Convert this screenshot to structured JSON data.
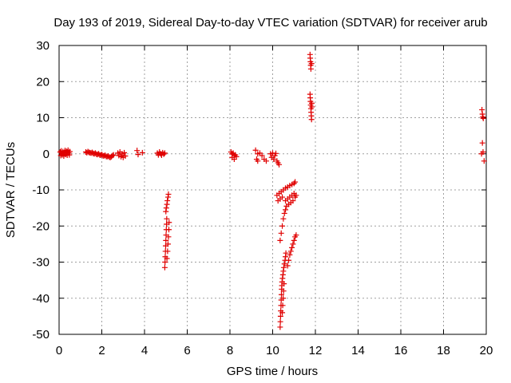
{
  "chart_data": {
    "type": "scatter",
    "title": "Day 193 of 2019, Sidereal Day-to-day VTEC variation (SDTVAR) for receiver arub",
    "xlabel": "GPS time / hours",
    "ylabel": "SDTVAR / TECUs",
    "xlim": [
      0,
      20
    ],
    "ylim": [
      -50,
      30
    ],
    "xticks": [
      0,
      2,
      4,
      6,
      8,
      10,
      12,
      14,
      16,
      18,
      20
    ],
    "yticks": [
      -50,
      -40,
      -30,
      -20,
      -10,
      0,
      10,
      20,
      30
    ],
    "grid": true,
    "marker": "+",
    "marker_color": "#e00000",
    "series": [
      {
        "name": "SDTVAR",
        "points": [
          [
            0.05,
            0.5
          ],
          [
            0.08,
            -0.5
          ],
          [
            0.1,
            0.8
          ],
          [
            0.12,
            0.2
          ],
          [
            0.15,
            -0.3
          ],
          [
            0.18,
            0.6
          ],
          [
            0.2,
            0.1
          ],
          [
            0.22,
            -0.6
          ],
          [
            0.25,
            0.4
          ],
          [
            0.28,
            0.9
          ],
          [
            0.3,
            -0.2
          ],
          [
            0.32,
            0.3
          ],
          [
            0.35,
            0.7
          ],
          [
            0.38,
            -0.4
          ],
          [
            0.4,
            0.5
          ],
          [
            0.42,
            1.0
          ],
          [
            0.45,
            0.2
          ],
          [
            0.48,
            -0.3
          ],
          [
            0.5,
            0.6
          ],
          [
            1.25,
            0.5
          ],
          [
            1.3,
            0.3
          ],
          [
            1.35,
            0.6
          ],
          [
            1.4,
            0.4
          ],
          [
            1.45,
            0.3
          ],
          [
            1.5,
            0.2
          ],
          [
            1.55,
            0.4
          ],
          [
            1.6,
            0.1
          ],
          [
            1.65,
            0.0
          ],
          [
            1.7,
            0.2
          ],
          [
            1.75,
            -0.1
          ],
          [
            1.8,
            -0.2
          ],
          [
            1.85,
            0.0
          ],
          [
            1.9,
            -0.3
          ],
          [
            1.95,
            -0.4
          ],
          [
            2.0,
            -0.2
          ],
          [
            2.05,
            -0.5
          ],
          [
            2.1,
            -0.6
          ],
          [
            2.15,
            -0.4
          ],
          [
            2.2,
            -0.7
          ],
          [
            2.25,
            -0.8
          ],
          [
            2.3,
            -0.6
          ],
          [
            2.35,
            -0.9
          ],
          [
            2.4,
            -1.0
          ],
          [
            2.45,
            -0.8
          ],
          [
            2.5,
            -0.5
          ],
          [
            2.55,
            -0.3
          ],
          [
            2.75,
            0.2
          ],
          [
            2.8,
            -0.5
          ],
          [
            2.85,
            0.5
          ],
          [
            2.9,
            -0.8
          ],
          [
            2.95,
            0.0
          ],
          [
            3.0,
            -1.0
          ],
          [
            3.05,
            0.3
          ],
          [
            3.1,
            -0.6
          ],
          [
            3.65,
            0.9
          ],
          [
            3.7,
            -0.2
          ],
          [
            3.9,
            0.3
          ],
          [
            4.6,
            0.2
          ],
          [
            4.65,
            -0.3
          ],
          [
            4.7,
            0.5
          ],
          [
            4.75,
            0.0
          ],
          [
            4.8,
            -0.4
          ],
          [
            4.85,
            0.3
          ],
          [
            4.9,
            -0.1
          ],
          [
            4.95,
            0.2
          ],
          [
            4.95,
            -31.5
          ],
          [
            4.96,
            -30
          ],
          [
            4.97,
            -28.5
          ],
          [
            4.98,
            -27
          ],
          [
            4.99,
            -25.5
          ],
          [
            5.0,
            -24
          ],
          [
            5.01,
            -22.5
          ],
          [
            5.02,
            -21
          ],
          [
            5.03,
            -19.5
          ],
          [
            5.04,
            -18
          ],
          [
            5.0,
            -16
          ],
          [
            5.02,
            -15
          ],
          [
            5.05,
            -14
          ],
          [
            5.07,
            -13
          ],
          [
            5.1,
            -12
          ],
          [
            5.12,
            -11.2
          ],
          [
            5.05,
            -29
          ],
          [
            5.08,
            -27
          ],
          [
            5.1,
            -25
          ],
          [
            5.12,
            -23
          ],
          [
            5.14,
            -21
          ],
          [
            5.15,
            -19
          ],
          [
            8.05,
            0.5
          ],
          [
            8.1,
            -1.0
          ],
          [
            8.15,
            0.2
          ],
          [
            8.2,
            -1.5
          ],
          [
            8.25,
            -0.3
          ],
          [
            8.3,
            -0.8
          ],
          [
            8.1,
            0.0
          ],
          [
            8.2,
            -0.5
          ],
          [
            9.2,
            1.0
          ],
          [
            9.25,
            -1.5
          ],
          [
            9.3,
            0.0
          ],
          [
            9.3,
            -2.0
          ],
          [
            9.4,
            0.2
          ],
          [
            9.5,
            -0.5
          ],
          [
            9.6,
            -1.5
          ],
          [
            9.7,
            -2.0
          ],
          [
            9.9,
            0.0
          ],
          [
            9.95,
            -1.0
          ],
          [
            10.0,
            0.2
          ],
          [
            10.05,
            -1.5
          ],
          [
            10.1,
            -0.5
          ],
          [
            10.15,
            0.1
          ],
          [
            10.2,
            -2.0
          ],
          [
            10.25,
            -2.5
          ],
          [
            10.3,
            -3.0
          ],
          [
            10.2,
            -11.5
          ],
          [
            10.3,
            -11
          ],
          [
            10.4,
            -10.5
          ],
          [
            10.5,
            -10
          ],
          [
            10.6,
            -9.5
          ],
          [
            10.7,
            -9.2
          ],
          [
            10.8,
            -8.8
          ],
          [
            10.9,
            -8.5
          ],
          [
            11.0,
            -8.2
          ],
          [
            11.05,
            -7.8
          ],
          [
            10.35,
            -24
          ],
          [
            10.4,
            -22
          ],
          [
            10.45,
            -20
          ],
          [
            10.5,
            -18
          ],
          [
            10.55,
            -16.5
          ],
          [
            10.6,
            -15.5
          ],
          [
            10.65,
            -14.5
          ],
          [
            10.75,
            -14
          ],
          [
            10.85,
            -13.5
          ],
          [
            10.95,
            -13
          ],
          [
            11.05,
            -12
          ],
          [
            11.1,
            -11.5
          ],
          [
            10.6,
            -13
          ],
          [
            10.7,
            -12.5
          ],
          [
            10.8,
            -12
          ],
          [
            10.9,
            -11.5
          ],
          [
            11.0,
            -11
          ],
          [
            10.25,
            -13
          ],
          [
            10.35,
            -12.5
          ],
          [
            10.45,
            -12
          ],
          [
            10.35,
            -48
          ],
          [
            10.36,
            -46.5
          ],
          [
            10.37,
            -45
          ],
          [
            10.38,
            -43.5
          ],
          [
            10.39,
            -42
          ],
          [
            10.4,
            -40.5
          ],
          [
            10.41,
            -39
          ],
          [
            10.42,
            -37.5
          ],
          [
            10.43,
            -36.5
          ],
          [
            10.44,
            -35.5
          ],
          [
            10.46,
            -34.5
          ],
          [
            10.48,
            -33.5
          ],
          [
            10.5,
            -32.5
          ],
          [
            10.52,
            -31.5
          ],
          [
            10.55,
            -30.5
          ],
          [
            10.58,
            -29.5
          ],
          [
            10.6,
            -28.5
          ],
          [
            10.62,
            -27.5
          ],
          [
            10.45,
            -44
          ],
          [
            10.47,
            -42
          ],
          [
            10.49,
            -40
          ],
          [
            10.51,
            -38
          ],
          [
            10.53,
            -36
          ],
          [
            10.7,
            -31
          ],
          [
            10.75,
            -29.5
          ],
          [
            10.8,
            -28
          ],
          [
            10.85,
            -27
          ],
          [
            10.9,
            -26
          ],
          [
            10.95,
            -25
          ],
          [
            11.0,
            -24
          ],
          [
            11.05,
            -23
          ],
          [
            11.1,
            -22.5
          ],
          [
            11.75,
            27.5
          ],
          [
            11.76,
            26.5
          ],
          [
            11.77,
            25.5
          ],
          [
            11.78,
            24.5
          ],
          [
            11.79,
            23.5
          ],
          [
            11.82,
            25
          ],
          [
            11.75,
            16.5
          ],
          [
            11.76,
            15.5
          ],
          [
            11.77,
            14.5
          ],
          [
            11.78,
            13.5
          ],
          [
            11.79,
            12.5
          ],
          [
            11.8,
            11.5
          ],
          [
            11.81,
            10.5
          ],
          [
            11.82,
            9.5
          ],
          [
            11.83,
            14
          ],
          [
            11.84,
            13
          ],
          [
            19.8,
            12.2
          ],
          [
            19.82,
            11
          ],
          [
            19.84,
            10.2
          ],
          [
            19.86,
            9.8
          ],
          [
            19.82,
            3.0
          ],
          [
            19.85,
            0.5
          ],
          [
            19.78,
            0.0
          ],
          [
            19.9,
            -2.0
          ]
        ]
      }
    ]
  }
}
